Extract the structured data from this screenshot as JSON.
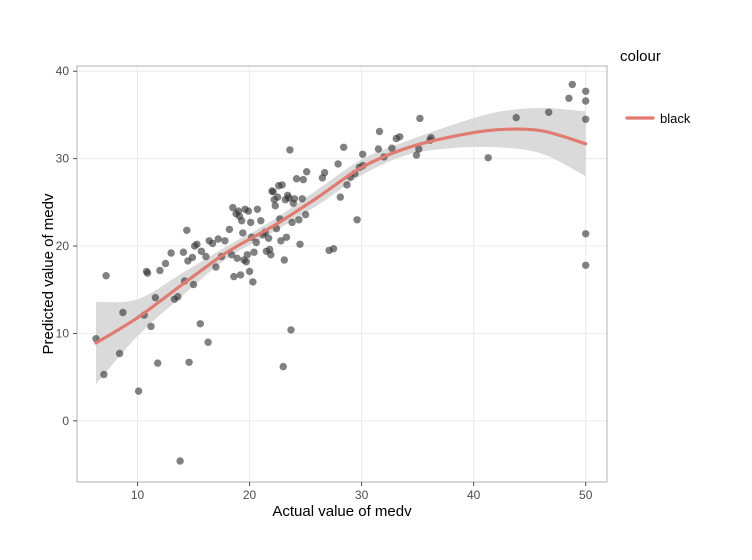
{
  "chart_data": {
    "type": "scatter",
    "title": "",
    "xlabel": "Actual value of medv",
    "ylabel": "Predicted value of medv",
    "xlim": [
      4.6,
      51.9
    ],
    "ylim": [
      -7,
      40.6
    ],
    "x_ticks": [
      10,
      20,
      30,
      40,
      50
    ],
    "y_ticks": [
      0,
      10,
      20,
      30,
      40
    ],
    "grid": true,
    "legend": {
      "title": "colour",
      "position": "right",
      "entries": [
        {
          "label": "black",
          "color": "#e07b72"
        }
      ]
    },
    "colors": {
      "points": "#333333",
      "smooth_line": "#e07b72",
      "confidence_band": "#d3d3d3",
      "grid": "#ebebeb",
      "panel_border": "#b3b3b3"
    },
    "points": [
      [
        6.3,
        9.4
      ],
      [
        7.0,
        5.3
      ],
      [
        7.2,
        16.6
      ],
      [
        8.4,
        7.7
      ],
      [
        8.7,
        12.4
      ],
      [
        10.1,
        3.4
      ],
      [
        10.6,
        12.1
      ],
      [
        10.8,
        17.1
      ],
      [
        10.9,
        16.9
      ],
      [
        11.2,
        10.8
      ],
      [
        11.6,
        14.1
      ],
      [
        11.8,
        6.6
      ],
      [
        12.0,
        17.2
      ],
      [
        12.5,
        18.0
      ],
      [
        13.0,
        19.2
      ],
      [
        13.3,
        13.9
      ],
      [
        13.6,
        14.2
      ],
      [
        13.8,
        -4.6
      ],
      [
        14.1,
        19.3
      ],
      [
        14.2,
        16.0
      ],
      [
        14.4,
        21.8
      ],
      [
        14.5,
        18.3
      ],
      [
        14.6,
        6.7
      ],
      [
        14.9,
        18.7
      ],
      [
        15.0,
        15.6
      ],
      [
        15.1,
        20.0
      ],
      [
        15.3,
        20.2
      ],
      [
        15.6,
        11.1
      ],
      [
        15.7,
        19.4
      ],
      [
        16.1,
        18.8
      ],
      [
        16.3,
        9.0
      ],
      [
        16.4,
        20.6
      ],
      [
        16.7,
        20.3
      ],
      [
        17.0,
        17.6
      ],
      [
        17.2,
        20.8
      ],
      [
        17.5,
        18.8
      ],
      [
        17.8,
        20.6
      ],
      [
        18.2,
        21.9
      ],
      [
        18.4,
        19.0
      ],
      [
        18.5,
        24.4
      ],
      [
        18.6,
        16.5
      ],
      [
        18.8,
        23.7
      ],
      [
        18.9,
        18.6
      ],
      [
        19.0,
        24.0
      ],
      [
        19.1,
        23.4
      ],
      [
        19.2,
        16.7
      ],
      [
        19.3,
        22.9
      ],
      [
        19.4,
        21.5
      ],
      [
        19.5,
        18.4
      ],
      [
        19.6,
        24.2
      ],
      [
        19.7,
        18.2
      ],
      [
        19.8,
        19.0
      ],
      [
        19.9,
        24.0
      ],
      [
        20.0,
        17.1
      ],
      [
        20.1,
        22.7
      ],
      [
        20.2,
        21.0
      ],
      [
        20.3,
        15.9
      ],
      [
        20.4,
        19.3
      ],
      [
        20.6,
        20.4
      ],
      [
        20.7,
        24.2
      ],
      [
        21.0,
        22.9
      ],
      [
        21.2,
        21.3
      ],
      [
        21.4,
        21.6
      ],
      [
        21.5,
        19.4
      ],
      [
        21.7,
        20.9
      ],
      [
        21.8,
        19.6
      ],
      [
        21.9,
        19.0
      ],
      [
        22.0,
        26.3
      ],
      [
        22.1,
        26.2
      ],
      [
        22.2,
        25.3
      ],
      [
        22.3,
        24.6
      ],
      [
        22.4,
        22.0
      ],
      [
        22.5,
        25.6
      ],
      [
        22.6,
        26.9
      ],
      [
        22.7,
        23.1
      ],
      [
        22.8,
        20.6
      ],
      [
        22.9,
        27.0
      ],
      [
        23.0,
        6.2
      ],
      [
        23.1,
        18.4
      ],
      [
        23.2,
        25.3
      ],
      [
        23.3,
        21.0
      ],
      [
        23.4,
        25.8
      ],
      [
        23.5,
        25.5
      ],
      [
        23.6,
        31.0
      ],
      [
        23.7,
        10.4
      ],
      [
        23.8,
        22.7
      ],
      [
        23.9,
        24.9
      ],
      [
        24.0,
        25.4
      ],
      [
        24.2,
        27.7
      ],
      [
        24.4,
        23.0
      ],
      [
        24.5,
        20.2
      ],
      [
        24.7,
        25.4
      ],
      [
        24.8,
        27.6
      ],
      [
        25.0,
        23.6
      ],
      [
        25.1,
        28.5
      ],
      [
        26.5,
        27.8
      ],
      [
        26.7,
        28.4
      ],
      [
        27.1,
        19.5
      ],
      [
        27.5,
        19.7
      ],
      [
        27.9,
        29.4
      ],
      [
        28.1,
        25.6
      ],
      [
        28.4,
        31.3
      ],
      [
        28.7,
        27.0
      ],
      [
        29.0,
        27.9
      ],
      [
        29.4,
        28.3
      ],
      [
        29.6,
        23.0
      ],
      [
        29.8,
        29.0
      ],
      [
        30.1,
        29.2
      ],
      [
        30.1,
        30.5
      ],
      [
        31.5,
        31.1
      ],
      [
        31.6,
        33.1
      ],
      [
        32.0,
        30.2
      ],
      [
        32.7,
        31.2
      ],
      [
        33.1,
        32.3
      ],
      [
        33.4,
        32.5
      ],
      [
        34.9,
        30.4
      ],
      [
        35.1,
        31.1
      ],
      [
        35.2,
        34.6
      ],
      [
        36.1,
        32.1
      ],
      [
        36.2,
        32.4
      ],
      [
        41.3,
        30.1
      ],
      [
        43.8,
        34.7
      ],
      [
        46.7,
        35.3
      ],
      [
        48.5,
        36.9
      ],
      [
        48.8,
        38.5
      ],
      [
        50.0,
        37.7
      ],
      [
        50.0,
        36.6
      ],
      [
        50.0,
        34.5
      ],
      [
        50.0,
        21.4
      ],
      [
        50.0,
        17.8
      ]
    ],
    "smooth": {
      "x": [
        6.3,
        10,
        14,
        18,
        22,
        26,
        30,
        34,
        38,
        42,
        46,
        50
      ],
      "y": [
        8.9,
        11.8,
        15.6,
        19.3,
        22.2,
        25.5,
        29.0,
        31.2,
        32.5,
        33.3,
        33.2,
        31.7
      ],
      "lower": [
        4.2,
        9.7,
        14.3,
        18.6,
        21.5,
        24.6,
        28.1,
        30.4,
        31.2,
        31.3,
        30.6,
        28.0
      ],
      "upper": [
        13.6,
        13.9,
        16.9,
        20.0,
        22.9,
        26.4,
        29.9,
        32.0,
        33.8,
        35.3,
        35.8,
        35.4
      ]
    }
  }
}
